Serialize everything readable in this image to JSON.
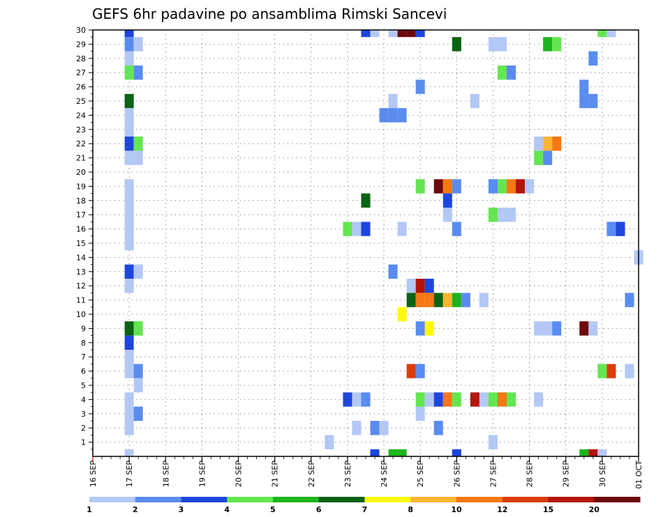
{
  "chart_data": {
    "type": "heatmap",
    "title": "GEFS 6hr padavine po ansamblima Rimski Sancevi",
    "xlabel": "",
    "ylabel": "",
    "x_tick_labels": [
      "16 SEP",
      "17 SEP",
      "18 SEP",
      "19 SEP",
      "20 SEP",
      "21 SEP",
      "22 SEP",
      "23 SEP",
      "24 SEP",
      "25 SEP",
      "26 SEP",
      "27 SEP",
      "28 SEP",
      "29 SEP",
      "30 SEP",
      "01 OCT"
    ],
    "y_tick_labels": [
      "1",
      "2",
      "3",
      "4",
      "5",
      "6",
      "7",
      "8",
      "9",
      "10",
      "11",
      "12",
      "13",
      "14",
      "15",
      "16",
      "17",
      "18",
      "19",
      "20",
      "21",
      "22",
      "23",
      "24",
      "25",
      "26",
      "27",
      "28",
      "29",
      "30"
    ],
    "x_range_days": [
      0,
      15
    ],
    "y_range": [
      0,
      30
    ],
    "grid": true,
    "legend_placement": "bottom",
    "colorbar": {
      "labels": [
        "1",
        "2",
        "3",
        "4",
        "5",
        "6",
        "7",
        "8",
        "10",
        "12",
        "15",
        "20"
      ],
      "colors": [
        "#b4c8f5",
        "#5a8cf0",
        "#1e46dc",
        "#64e650",
        "#1eb41e",
        "#0a6414",
        "#fffa0a",
        "#ffb432",
        "#f57814",
        "#dc3c0a",
        "#b4140a",
        "#6e0a0a"
      ]
    },
    "cells_note": "each cell: [member, day offset from 16 SEP, precipitation class index into colorbar.colors]",
    "cells": [
      [
        30,
        1.0,
        2
      ],
      [
        29,
        1.0,
        1
      ],
      [
        29,
        1.25,
        0
      ],
      [
        28,
        1.0,
        0
      ],
      [
        27,
        1.0,
        3
      ],
      [
        27,
        1.25,
        1
      ],
      [
        25,
        1.0,
        5
      ],
      [
        24,
        1.0,
        0
      ],
      [
        23,
        1.0,
        0
      ],
      [
        22,
        1.0,
        2
      ],
      [
        22,
        1.25,
        3
      ],
      [
        21,
        1.0,
        0
      ],
      [
        21,
        1.25,
        0
      ],
      [
        19,
        1.0,
        0
      ],
      [
        18,
        1.0,
        0
      ],
      [
        17,
        1.0,
        0
      ],
      [
        16,
        1.0,
        0
      ],
      [
        15,
        1.0,
        0
      ],
      [
        13,
        1.0,
        2
      ],
      [
        13,
        1.25,
        0
      ],
      [
        12,
        1.0,
        0
      ],
      [
        9,
        1.0,
        5
      ],
      [
        9,
        1.25,
        3
      ],
      [
        8,
        1.0,
        2
      ],
      [
        7,
        1.0,
        0
      ],
      [
        6,
        1.0,
        0
      ],
      [
        6,
        1.25,
        1
      ],
      [
        5,
        1.25,
        0
      ],
      [
        4,
        1.0,
        0
      ],
      [
        3,
        1.0,
        0
      ],
      [
        3,
        1.25,
        1
      ],
      [
        2,
        1.0,
        0
      ],
      [
        0,
        1.0,
        0
      ],
      [
        30,
        7.5,
        2
      ],
      [
        30,
        7.75,
        0
      ],
      [
        30,
        8.25,
        0
      ],
      [
        30,
        8.5,
        11
      ],
      [
        30,
        8.75,
        11
      ],
      [
        30,
        9.0,
        2
      ],
      [
        30,
        14.0,
        3
      ],
      [
        30,
        14.25,
        0
      ],
      [
        29,
        10.0,
        5
      ],
      [
        29,
        11.0,
        0
      ],
      [
        29,
        11.25,
        0
      ],
      [
        29,
        12.5,
        4
      ],
      [
        29,
        12.75,
        3
      ],
      [
        28,
        13.75,
        1
      ],
      [
        27,
        11.25,
        3
      ],
      [
        27,
        11.5,
        1
      ],
      [
        26,
        9.0,
        1
      ],
      [
        26,
        13.5,
        1
      ],
      [
        25,
        8.25,
        0
      ],
      [
        25,
        10.5,
        0
      ],
      [
        25,
        13.5,
        1
      ],
      [
        25,
        13.75,
        1
      ],
      [
        24,
        8.0,
        1
      ],
      [
        24,
        8.25,
        1
      ],
      [
        24,
        8.5,
        1
      ],
      [
        22,
        12.25,
        0
      ],
      [
        22,
        12.5,
        7
      ],
      [
        22,
        12.75,
        8
      ],
      [
        21,
        12.25,
        3
      ],
      [
        21,
        12.5,
        1
      ],
      [
        19,
        9.0,
        3
      ],
      [
        19,
        9.5,
        11
      ],
      [
        19,
        9.75,
        8
      ],
      [
        19,
        10.0,
        1
      ],
      [
        19,
        11.0,
        1
      ],
      [
        19,
        11.25,
        3
      ],
      [
        19,
        11.5,
        8
      ],
      [
        19,
        11.75,
        10
      ],
      [
        19,
        12.0,
        0
      ],
      [
        18,
        7.5,
        5
      ],
      [
        18,
        9.75,
        2
      ],
      [
        17,
        9.75,
        0
      ],
      [
        17,
        11.0,
        3
      ],
      [
        17,
        11.25,
        0
      ],
      [
        17,
        11.5,
        0
      ],
      [
        16,
        7.0,
        3
      ],
      [
        16,
        7.25,
        0
      ],
      [
        16,
        7.5,
        2
      ],
      [
        16,
        8.5,
        0
      ],
      [
        16,
        10.0,
        1
      ],
      [
        16,
        14.25,
        1
      ],
      [
        16,
        14.5,
        2
      ],
      [
        14,
        15.0,
        0
      ],
      [
        13,
        8.25,
        1
      ],
      [
        12,
        8.75,
        0
      ],
      [
        12,
        9.0,
        10
      ],
      [
        12,
        9.25,
        2
      ],
      [
        11,
        8.75,
        5
      ],
      [
        11,
        9.0,
        8
      ],
      [
        11,
        9.25,
        8
      ],
      [
        11,
        9.5,
        5
      ],
      [
        11,
        9.75,
        7
      ],
      [
        11,
        10.0,
        4
      ],
      [
        11,
        10.25,
        1
      ],
      [
        11,
        10.75,
        0
      ],
      [
        11,
        14.75,
        1
      ],
      [
        10,
        8.5,
        6
      ],
      [
        9,
        9.0,
        1
      ],
      [
        9,
        9.25,
        6
      ],
      [
        9,
        12.25,
        0
      ],
      [
        9,
        12.5,
        0
      ],
      [
        9,
        12.75,
        1
      ],
      [
        9,
        13.5,
        11
      ],
      [
        9,
        13.75,
        0
      ],
      [
        6,
        8.75,
        9
      ],
      [
        6,
        9.0,
        1
      ],
      [
        6,
        14.0,
        3
      ],
      [
        6,
        14.25,
        9
      ],
      [
        6,
        14.75,
        0
      ],
      [
        4,
        7.0,
        2
      ],
      [
        4,
        7.25,
        0
      ],
      [
        4,
        7.5,
        1
      ],
      [
        4,
        9.0,
        3
      ],
      [
        4,
        9.25,
        0
      ],
      [
        4,
        9.5,
        2
      ],
      [
        4,
        9.75,
        8
      ],
      [
        4,
        10.0,
        3
      ],
      [
        4,
        10.5,
        10
      ],
      [
        4,
        10.75,
        0
      ],
      [
        4,
        11.0,
        3
      ],
      [
        4,
        11.25,
        8
      ],
      [
        4,
        11.5,
        3
      ],
      [
        4,
        12.25,
        0
      ],
      [
        3,
        9.0,
        0
      ],
      [
        2,
        7.25,
        0
      ],
      [
        2,
        7.75,
        1
      ],
      [
        2,
        8.0,
        0
      ],
      [
        2,
        9.5,
        1
      ],
      [
        1,
        6.5,
        0
      ],
      [
        1,
        11.0,
        0
      ],
      [
        0,
        7.75,
        2
      ],
      [
        0,
        8.25,
        4
      ],
      [
        0,
        8.5,
        4
      ],
      [
        0,
        10.0,
        2
      ],
      [
        0,
        13.5,
        4
      ],
      [
        0,
        13.75,
        10
      ],
      [
        0,
        14.0,
        0
      ]
    ]
  }
}
